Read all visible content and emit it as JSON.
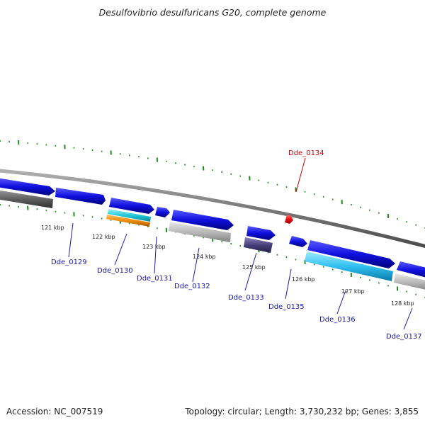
{
  "title": "Desulfovibrio desulfuricans G20, complete genome",
  "footer": {
    "accession": "Accession: NC_007519",
    "topology": "Topology: circular; Length: 3,730,232 bp; Genes: 3,855"
  },
  "colors": {
    "backbone": "#7a7a7a",
    "tick": "#1e8a1e",
    "gene_blue": "#1010e0",
    "cds_gray": "#b4b4b4",
    "cds_darkgray": "#5a5a5a",
    "cds_cyan": "#22c8d8",
    "cds_orange": "#f08c10",
    "cds_purple": "#48407c",
    "cds_skyblue": "#30c0f0",
    "highlight_red": "#ee1010",
    "label_blue": "#1a1aa6",
    "label_red": "#cc0000"
  },
  "kbp_labels": [
    "121 kbp",
    "122 kbp",
    "123 kbp",
    "124 kbp",
    "125 kbp",
    "126 kbp",
    "127 kbp",
    "128 kbp"
  ],
  "genes": [
    {
      "name": "Dde_0129",
      "highlight": false
    },
    {
      "name": "Dde_0130",
      "highlight": false
    },
    {
      "name": "Dde_0131",
      "highlight": false
    },
    {
      "name": "Dde_0132",
      "highlight": false
    },
    {
      "name": "Dde_0133",
      "highlight": false
    },
    {
      "name": "Dde_0134",
      "highlight": true
    },
    {
      "name": "Dde_0135",
      "highlight": false
    },
    {
      "name": "Dde_0136",
      "highlight": false
    },
    {
      "name": "Dde_0137",
      "highlight": false
    }
  ]
}
